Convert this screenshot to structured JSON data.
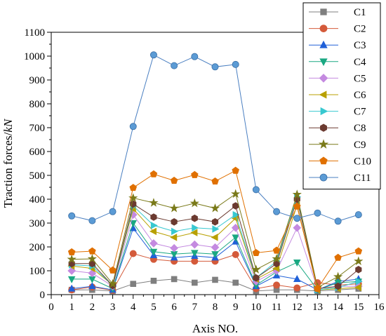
{
  "chart_data": {
    "type": "line",
    "xlabel": "Axis NO.",
    "ylabel_parts": [
      "Traction forces/",
      "kN"
    ],
    "xlim": [
      0,
      16
    ],
    "ylim": [
      0,
      1100
    ],
    "x_ticks": [
      0,
      1,
      2,
      3,
      4,
      5,
      6,
      7,
      8,
      9,
      10,
      11,
      12,
      13,
      14,
      15,
      16
    ],
    "y_ticks": [
      0,
      100,
      200,
      300,
      400,
      500,
      600,
      700,
      800,
      900,
      1000,
      1100
    ],
    "legend_position": "top-right",
    "x": [
      1,
      2,
      3,
      4,
      5,
      6,
      7,
      8,
      9,
      10,
      11,
      12,
      13,
      14,
      15
    ],
    "series": [
      {
        "name": "C1",
        "marker": "square",
        "color": "#7f7f7f",
        "values": [
          20,
          20,
          15,
          45,
          58,
          65,
          50,
          62,
          50,
          15,
          20,
          20,
          15,
          20,
          25
        ]
      },
      {
        "name": "C2",
        "marker": "circle",
        "color": "#d45a3a",
        "values": [
          20,
          32,
          18,
          172,
          148,
          140,
          140,
          140,
          168,
          25,
          40,
          28,
          50,
          40,
          45
        ]
      },
      {
        "name": "C3",
        "marker": "triangle-up",
        "color": "#2060d8",
        "values": [
          25,
          35,
          20,
          278,
          165,
          155,
          162,
          155,
          222,
          35,
          80,
          65,
          20,
          55,
          65
        ]
      },
      {
        "name": "C4",
        "marker": "triangle-down",
        "color": "#1aa882",
        "values": [
          65,
          65,
          25,
          300,
          180,
          170,
          175,
          170,
          240,
          40,
          95,
          135,
          20,
          50,
          55
        ]
      },
      {
        "name": "C5",
        "marker": "diamond",
        "color": "#c48ae0",
        "values": [
          100,
          90,
          35,
          335,
          215,
          195,
          210,
          198,
          280,
          55,
          100,
          280,
          25,
          35,
          35
        ]
      },
      {
        "name": "C6",
        "marker": "triangle-left",
        "color": "#b8a000",
        "values": [
          120,
          110,
          40,
          360,
          265,
          240,
          260,
          240,
          320,
          65,
          110,
          375,
          20,
          25,
          30
        ]
      },
      {
        "name": "C7",
        "marker": "triangle-right",
        "color": "#38c8d0",
        "values": [
          125,
          120,
          38,
          372,
          290,
          265,
          280,
          275,
          335,
          70,
          140,
          410,
          20,
          30,
          55
        ]
      },
      {
        "name": "C8",
        "marker": "hexagon",
        "color": "#6b3a30",
        "values": [
          130,
          130,
          38,
          380,
          325,
          305,
          320,
          305,
          372,
          70,
          130,
          400,
          25,
          35,
          105
        ]
      },
      {
        "name": "C9",
        "marker": "star",
        "color": "#7a7a1a",
        "values": [
          148,
          150,
          45,
          405,
          385,
          362,
          383,
          362,
          422,
          105,
          150,
          420,
          30,
          75,
          140
        ]
      },
      {
        "name": "C10",
        "marker": "pentagon",
        "color": "#e07000",
        "values": [
          178,
          182,
          102,
          448,
          505,
          478,
          502,
          475,
          520,
          175,
          185,
          370,
          25,
          155,
          182
        ]
      },
      {
        "name": "C11",
        "marker": "circle",
        "color": "#4a7fc1",
        "values": [
          330,
          310,
          348,
          705,
          1005,
          960,
          998,
          955,
          965,
          440,
          348,
          320,
          342,
          308,
          335
        ]
      }
    ]
  }
}
